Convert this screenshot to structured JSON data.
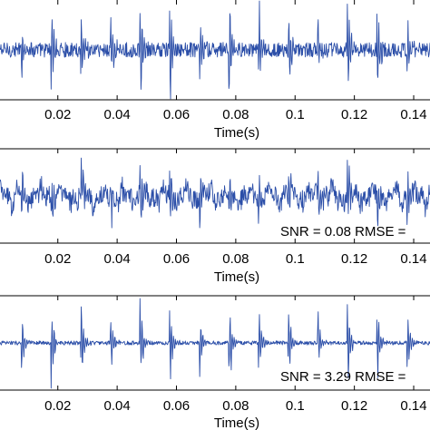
{
  "chart_data": [
    {
      "type": "line",
      "title": "",
      "xlabel": "Time(s)",
      "ylabel": "",
      "xticks": [
        "0.02",
        "0.04",
        "0.06",
        "0.08",
        "0.1",
        "0.12",
        "0.14"
      ],
      "xtick_values": [
        0.02,
        0.04,
        0.06,
        0.08,
        0.1,
        0.12,
        0.14
      ],
      "xlim": [
        0.0005,
        0.1455
      ],
      "ylim": [
        -1.2,
        1.2
      ],
      "grid": false,
      "annotation": "",
      "series_color": "#2b4ea8",
      "signal": {
        "kind": "impulse-train",
        "impulse_times": [
          0.008,
          0.018,
          0.028,
          0.038,
          0.048,
          0.058,
          0.068,
          0.078,
          0.088,
          0.098,
          0.108,
          0.118,
          0.128,
          0.138
        ],
        "impulse_amplitude": 1.0,
        "noise_level": 0.18,
        "wobble_level": 0.0
      }
    },
    {
      "type": "line",
      "title": "",
      "xlabel": "Time(s)",
      "ylabel": "",
      "xticks": [
        "0.02",
        "0.04",
        "0.06",
        "0.08",
        "0.1",
        "0.12",
        "0.14"
      ],
      "xtick_values": [
        0.02,
        0.04,
        0.06,
        0.08,
        0.1,
        0.12,
        0.14
      ],
      "xlim": [
        0.0005,
        0.1455
      ],
      "ylim": [
        -1.2,
        1.2
      ],
      "grid": false,
      "annotation": "SNR = 0.08   RMSE =",
      "series_color": "#2b4ea8",
      "signal": {
        "kind": "noisy-impulse-train",
        "impulse_times": [
          0.008,
          0.018,
          0.028,
          0.038,
          0.048,
          0.058,
          0.068,
          0.078,
          0.088,
          0.098,
          0.108,
          0.118,
          0.128,
          0.138
        ],
        "impulse_amplitude": 0.75,
        "noise_level": 0.25,
        "wobble_level": 0.35
      }
    },
    {
      "type": "line",
      "title": "",
      "xlabel": "Time(s)",
      "ylabel": "",
      "xticks": [
        "0.02",
        "0.04",
        "0.06",
        "0.08",
        "0.1",
        "0.12",
        "0.14"
      ],
      "xtick_values": [
        0.02,
        0.04,
        0.06,
        0.08,
        0.1,
        0.12,
        0.14
      ],
      "xlim": [
        0.0005,
        0.1455
      ],
      "ylim": [
        -1.2,
        1.2
      ],
      "grid": false,
      "annotation": "SNR = 3.29   RMSE =",
      "series_color": "#2b4ea8",
      "signal": {
        "kind": "impulse-train",
        "impulse_times": [
          0.008,
          0.018,
          0.028,
          0.038,
          0.048,
          0.058,
          0.068,
          0.078,
          0.088,
          0.098,
          0.108,
          0.118,
          0.128,
          0.138
        ],
        "impulse_amplitude": 0.95,
        "noise_level": 0.05,
        "wobble_level": 0.0
      }
    }
  ]
}
